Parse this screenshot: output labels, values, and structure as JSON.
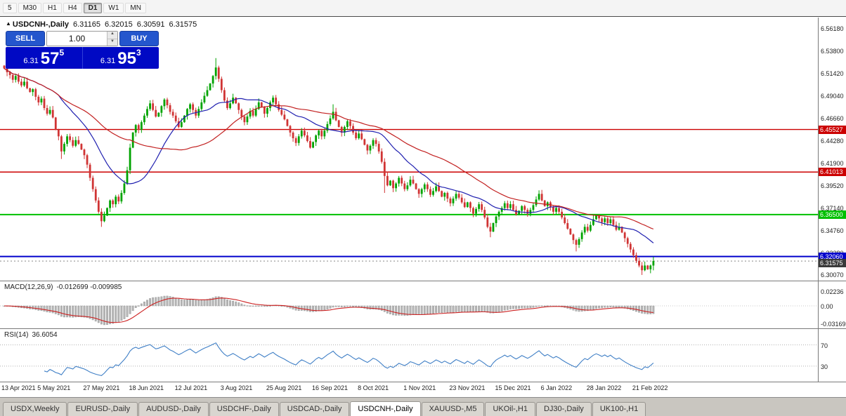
{
  "toolbar": {
    "items": [
      "5",
      "M30",
      "H1",
      "H4",
      "D1",
      "W1",
      "MN"
    ],
    "active": "D1"
  },
  "chart": {
    "symbol_title": "USDCNH-,Daily",
    "open": "6.31165",
    "high": "6.32015",
    "low": "6.30591",
    "close": "6.31575"
  },
  "trade_panel": {
    "sell_label": "SELL",
    "buy_label": "BUY",
    "volume": "1.00",
    "bid": {
      "main": "6.31",
      "big": "57",
      "sup": "5"
    },
    "ask": {
      "main": "6.31",
      "big": "95",
      "sup": "3"
    }
  },
  "price_axis": {
    "max": 6.574,
    "min": 6.295,
    "labels": [
      "6.56180",
      "6.53800",
      "6.51420",
      "6.49040",
      "6.46660",
      "6.44280",
      "6.41900",
      "6.39520",
      "6.37140",
      "6.34760",
      "6.32380",
      "6.30070"
    ]
  },
  "current_price": {
    "value": 6.31575,
    "label": "6.31575",
    "tag_color": "#3a3a3a"
  },
  "chart_data": {
    "type": "candlestick",
    "symbol": "USDCNH-",
    "timeframe": "Daily",
    "first_open": 6.523,
    "closes": [
      6.52,
      6.516,
      6.513,
      6.508,
      6.512,
      6.506,
      6.502,
      6.506,
      6.499,
      6.495,
      6.498,
      6.49,
      6.484,
      6.488,
      6.478,
      6.472,
      6.476,
      6.468,
      6.455,
      6.448,
      6.432,
      6.44,
      6.448,
      6.444,
      6.438,
      6.444,
      6.44,
      6.434,
      6.428,
      6.418,
      6.404,
      6.392,
      6.38,
      6.368,
      6.358,
      6.364,
      6.372,
      6.38,
      6.376,
      6.384,
      6.379,
      6.388,
      6.398,
      6.412,
      6.436,
      6.452,
      6.46,
      6.455,
      6.463,
      6.47,
      6.477,
      6.483,
      6.476,
      6.469,
      6.473,
      6.48,
      6.487,
      6.481,
      6.474,
      6.47,
      6.464,
      6.458,
      6.463,
      6.47,
      6.477,
      6.482,
      6.476,
      6.47,
      6.477,
      6.484,
      6.491,
      6.497,
      6.504,
      6.512,
      6.521,
      6.509,
      6.497,
      6.486,
      6.478,
      6.483,
      6.489,
      6.483,
      6.476,
      6.469,
      6.463,
      6.469,
      6.475,
      6.47,
      6.477,
      6.484,
      6.479,
      6.472,
      6.478,
      6.484,
      6.489,
      6.482,
      6.476,
      6.471,
      6.466,
      6.459,
      6.452,
      6.446,
      6.441,
      6.448,
      6.454,
      6.449,
      6.443,
      6.436,
      6.442,
      6.449,
      6.454,
      6.448,
      6.454,
      6.461,
      6.467,
      6.474,
      6.465,
      6.458,
      6.452,
      6.458,
      6.464,
      6.459,
      6.452,
      6.446,
      6.451,
      6.445,
      6.439,
      6.433,
      6.438,
      6.444,
      6.44,
      6.432,
      6.421,
      6.406,
      6.396,
      6.401,
      6.393,
      6.398,
      6.404,
      6.398,
      6.392,
      6.396,
      6.402,
      6.398,
      6.392,
      6.387,
      6.392,
      6.397,
      6.392,
      6.386,
      6.39,
      6.395,
      6.39,
      6.384,
      6.388,
      6.382,
      6.377,
      6.382,
      6.387,
      6.383,
      6.378,
      6.373,
      6.378,
      6.372,
      6.366,
      6.371,
      6.376,
      6.37,
      6.362,
      6.352,
      6.347,
      6.356,
      6.363,
      6.368,
      6.372,
      6.377,
      6.372,
      6.376,
      6.37,
      6.365,
      6.369,
      6.374,
      6.37,
      6.366,
      6.37,
      6.375,
      6.381,
      6.387,
      6.38,
      6.374,
      6.378,
      6.373,
      6.368,
      6.372,
      6.368,
      6.362,
      6.356,
      6.35,
      6.344,
      6.338,
      6.333,
      6.339,
      6.346,
      6.352,
      6.348,
      6.354,
      6.36,
      6.364,
      6.361,
      6.357,
      6.361,
      6.356,
      6.36,
      6.354,
      6.349,
      6.352,
      6.346,
      6.34,
      6.334,
      6.328,
      6.322,
      6.316,
      6.311,
      6.306,
      6.311,
      6.307,
      6.311,
      6.3158
    ],
    "wick_overrides": {
      "20": {
        "l": 6.424
      },
      "34": {
        "l": 6.352
      },
      "44": {
        "l": 6.408
      },
      "74": {
        "h": 6.531
      },
      "115": {
        "h": 6.482
      },
      "133": {
        "l": 6.388
      },
      "170": {
        "l": 6.341
      },
      "200": {
        "l": 6.326
      },
      "223": {
        "l": 6.301
      },
      "227": {
        "h": 6.3202,
        "l": 6.3059
      }
    },
    "x_labels": [
      {
        "t": "13 Apr 2021",
        "i": 2
      },
      {
        "t": "5 May 2021",
        "i": 18
      },
      {
        "t": "27 May 2021",
        "i": 34
      },
      {
        "t": "18 Jun 2021",
        "i": 50
      },
      {
        "t": "12 Jul 2021",
        "i": 66
      },
      {
        "t": "3 Aug 2021",
        "i": 82
      },
      {
        "t": "25 Aug 2021",
        "i": 98
      },
      {
        "t": "16 Sep 2021",
        "i": 114
      },
      {
        "t": "8 Oct 2021",
        "i": 130
      },
      {
        "t": "1 Nov 2021",
        "i": 146
      },
      {
        "t": "23 Nov 2021",
        "i": 162
      },
      {
        "t": "15 Dec 2021",
        "i": 178
      },
      {
        "t": "6 Jan 2022",
        "i": 194
      },
      {
        "t": "28 Jan 2022",
        "i": 210
      },
      {
        "t": "21 Feb 2022",
        "i": 226
      }
    ],
    "levels": [
      {
        "value": 6.45527,
        "label": "6.45527",
        "color": "#cc0000",
        "width": 1.4
      },
      {
        "value": 6.41013,
        "label": "6.41013",
        "color": "#cc0000",
        "width": 1.4
      },
      {
        "value": 6.365,
        "label": "6.36500",
        "color": "#00c000",
        "width": 2
      },
      {
        "value": 6.3206,
        "label": "6.32060",
        "color": "#0000cc",
        "width": 2
      }
    ],
    "indicators": {
      "ma_fast_period": 20,
      "ma_slow_period": 45,
      "macd": {
        "label": "MACD(12,26,9)",
        "values": "-0.012699 -0.009985",
        "params": [
          12,
          26,
          9
        ],
        "axis": [
          "0.02236",
          "0.00",
          "-0.03169"
        ]
      },
      "rsi": {
        "label": "RSI(14)",
        "value": "36.6054",
        "period": 14,
        "levels": [
          70,
          30
        ],
        "axis": [
          "70",
          "30"
        ]
      }
    },
    "colors": {
      "up": "#00a300",
      "down": "#d03434",
      "ma_fast": "#2020b0",
      "ma_slow": "#c22020",
      "macd_hist": "#b6b6b6",
      "macd_signal": "#cc2222",
      "rsi_line": "#3f7fc6"
    }
  },
  "tabs": [
    {
      "label": "USDX,Weekly",
      "active": false
    },
    {
      "label": "EURUSD-,Daily",
      "active": false
    },
    {
      "label": "AUDUSD-,Daily",
      "active": false
    },
    {
      "label": "USDCHF-,Daily",
      "active": false
    },
    {
      "label": "USDCAD-,Daily",
      "active": false
    },
    {
      "label": "USDCNH-,Daily",
      "active": true
    },
    {
      "label": "XAUUSD-,M5",
      "active": false
    },
    {
      "label": "UKOil-,H1",
      "active": false
    },
    {
      "label": "DJ30-,Daily",
      "active": false
    },
    {
      "label": "UK100-,H1",
      "active": false
    }
  ]
}
